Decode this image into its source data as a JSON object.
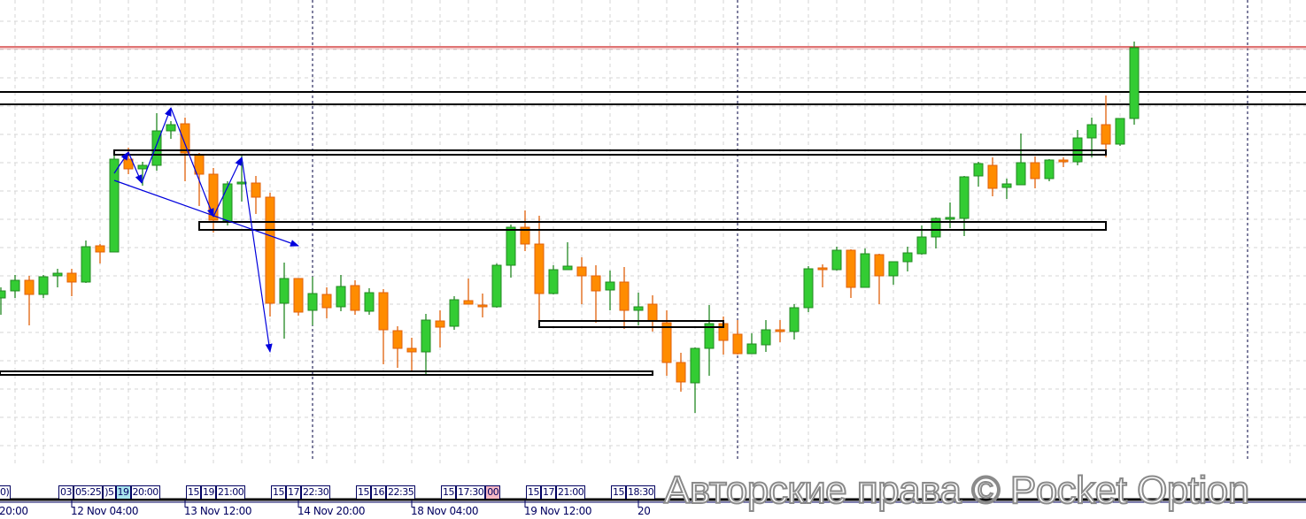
{
  "chart_data": {
    "type": "candlestick",
    "title": "",
    "colors": {
      "up": "#33cc33",
      "up_border": "#228822",
      "down": "#ff8c00",
      "down_border": "#e0600a",
      "arrows": "#0000dd",
      "levels": "#000000",
      "price_line": "#cc2222",
      "grid": "#d4d4d4"
    },
    "grid": true,
    "candles_ohlc": [
      [
        263,
        275,
        244,
        271
      ],
      [
        271,
        289,
        263,
        283
      ],
      [
        283,
        288,
        232,
        267
      ],
      [
        267,
        289,
        263,
        287
      ],
      [
        288,
        296,
        275,
        291
      ],
      [
        291,
        296,
        265,
        281
      ],
      [
        281,
        328,
        280,
        321
      ],
      [
        322,
        324,
        302,
        315
      ],
      [
        315,
        424,
        315,
        420
      ],
      [
        420,
        433,
        403,
        409
      ],
      [
        409,
        417,
        390,
        413
      ],
      [
        413,
        472,
        407,
        452
      ],
      [
        452,
        463,
        443,
        459
      ],
      [
        460,
        467,
        395,
        427
      ],
      [
        425,
        427,
        367,
        403
      ],
      [
        403,
        410,
        337,
        351
      ],
      [
        350,
        395,
        345,
        392
      ],
      [
        392,
        425,
        372,
        394
      ],
      [
        393,
        401,
        358,
        377
      ],
      [
        377,
        382,
        242,
        257
      ],
      [
        257,
        303,
        217,
        285
      ],
      [
        285,
        285,
        243,
        247
      ],
      [
        249,
        287,
        232,
        268
      ],
      [
        267,
        275,
        240,
        252
      ],
      [
        253,
        289,
        248,
        276
      ],
      [
        277,
        283,
        244,
        249
      ],
      [
        248,
        274,
        244,
        269
      ],
      [
        269,
        273,
        188,
        227
      ],
      [
        226,
        231,
        184,
        206
      ],
      [
        206,
        218,
        181,
        202
      ],
      [
        202,
        245,
        177,
        238
      ],
      [
        237,
        249,
        207,
        230
      ],
      [
        231,
        265,
        227,
        261
      ],
      [
        260,
        285,
        256,
        256
      ],
      [
        255,
        268,
        241,
        253
      ],
      [
        253,
        302,
        252,
        300
      ],
      [
        300,
        346,
        286,
        343
      ],
      [
        343,
        362,
        316,
        324
      ],
      [
        324,
        356,
        236,
        268
      ],
      [
        268,
        300,
        267,
        295
      ],
      [
        295,
        326,
        295,
        299
      ],
      [
        298,
        309,
        256,
        288
      ],
      [
        288,
        300,
        235,
        271
      ],
      [
        272,
        294,
        249,
        281
      ],
      [
        281,
        298,
        228,
        249
      ],
      [
        249,
        269,
        232,
        253
      ],
      [
        256,
        266,
        225,
        237
      ],
      [
        235,
        249,
        175,
        190
      ],
      [
        190,
        201,
        157,
        168
      ],
      [
        167,
        207,
        133,
        206
      ],
      [
        206,
        255,
        175,
        234
      ],
      [
        234,
        242,
        199,
        215
      ],
      [
        222,
        238,
        199,
        200
      ],
      [
        200,
        223,
        200,
        211
      ],
      [
        210,
        238,
        202,
        227
      ],
      [
        227,
        238,
        213,
        225
      ],
      [
        225,
        256,
        216,
        252
      ],
      [
        252,
        299,
        247,
        296
      ],
      [
        297,
        301,
        275,
        295
      ],
      [
        295,
        321,
        294,
        317
      ],
      [
        317,
        318,
        263,
        275
      ],
      [
        275,
        319,
        275,
        313
      ],
      [
        312,
        313,
        256,
        288
      ],
      [
        288,
        304,
        278,
        304
      ],
      [
        304,
        321,
        293,
        314
      ],
      [
        313,
        345,
        312,
        332
      ],
      [
        332,
        354,
        319,
        353
      ],
      [
        353,
        371,
        342,
        354
      ],
      [
        353,
        401,
        333,
        400
      ],
      [
        401,
        417,
        389,
        415
      ],
      [
        413,
        422,
        378,
        387
      ],
      [
        388,
        398,
        375,
        392
      ],
      [
        391,
        449,
        391,
        416
      ],
      [
        416,
        423,
        387,
        398
      ],
      [
        398,
        420,
        395,
        419
      ],
      [
        419,
        422,
        411,
        417
      ],
      [
        417,
        453,
        413,
        444
      ],
      [
        444,
        467,
        422,
        459
      ],
      [
        459,
        492,
        422,
        437
      ],
      [
        437,
        466,
        435,
        466
      ],
      [
        466,
        553,
        459,
        546
      ]
    ],
    "price_line": 547,
    "horizontal_lines": [
      496,
      482
    ],
    "zones": [
      {
        "from_candle": 8,
        "to_candle": 78,
        "top": 430,
        "bottom": 425
      },
      {
        "from_candle": 14,
        "to_candle": 78,
        "top": 349,
        "bottom": 340
      },
      {
        "from_candle": 38,
        "to_candle": 51,
        "top": 237,
        "bottom": 230
      },
      {
        "from_candle": -1,
        "to_candle": 46,
        "top": 180,
        "bottom": 176
      }
    ],
    "zigzag_arrows": [
      [
        8,
        404
      ],
      [
        9,
        428
      ],
      [
        9.94,
        393
      ],
      [
        12,
        478
      ],
      [
        15,
        355
      ],
      [
        17,
        422
      ],
      [
        19,
        202
      ]
    ],
    "trend_arrow": [
      [
        8,
        396
      ],
      [
        21,
        322
      ]
    ],
    "session_separators_candle": [
      22,
      52,
      88
    ],
    "x_ticks": [
      {
        "candle": -3,
        "label": "20:00"
      },
      {
        "candle": 5,
        "label": "12 Nov 04:00"
      },
      {
        "candle": 13,
        "label": "13 Nov 12:00"
      },
      {
        "candle": 21,
        "label": "14 Nov 20:00"
      },
      {
        "candle": 29,
        "label": "18 Nov 04:00"
      },
      {
        "candle": 37,
        "label": "19 Nov 12:00"
      },
      {
        "candle": 45,
        "label": "20"
      }
    ],
    "marker_tags": [
      {
        "candle": -1,
        "items": [
          {
            "t": "0)"
          }
        ]
      },
      {
        "candle": 4,
        "items": [
          {
            "t": "03"
          },
          {
            "t": "05:25"
          },
          {
            "t": ")5"
          },
          {
            "t": "19",
            "hl": "cyan"
          },
          {
            "t": "20:00"
          }
        ]
      },
      {
        "candle": 13,
        "items": [
          {
            "t": "15"
          },
          {
            "t": "19"
          },
          {
            "t": "21:00"
          }
        ]
      },
      {
        "candle": 19,
        "items": [
          {
            "t": "15"
          },
          {
            "t": "17"
          },
          {
            "t": "22:30"
          }
        ]
      },
      {
        "candle": 25,
        "items": [
          {
            "t": "15"
          },
          {
            "t": "16"
          },
          {
            "t": "22:35"
          }
        ]
      },
      {
        "candle": 31,
        "items": [
          {
            "t": "15"
          },
          {
            "t": "17:30"
          },
          {
            "t": "00",
            "hl": "pink"
          }
        ]
      },
      {
        "candle": 37,
        "items": [
          {
            "t": "15"
          },
          {
            "t": "17"
          },
          {
            "t": "21:00"
          }
        ]
      },
      {
        "candle": 43,
        "items": [
          {
            "t": "15"
          },
          {
            "t": "18:30"
          }
        ]
      }
    ]
  },
  "watermark": "Авторские права © Pocket Option"
}
